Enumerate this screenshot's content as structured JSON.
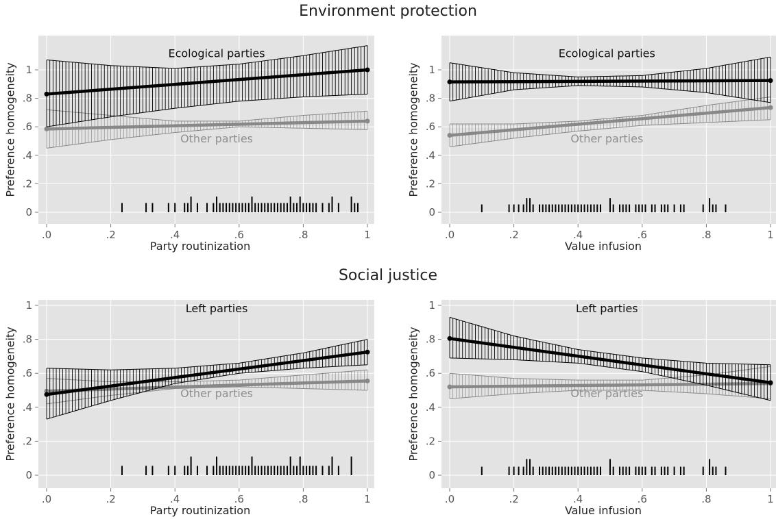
{
  "sections": [
    {
      "title": "Environment protection"
    },
    {
      "title": "Social justice"
    }
  ],
  "colors": {
    "panel_bg": "#e3e3e3",
    "grid": "#ffffff",
    "dark_series": "#000000",
    "light_series": "#888888",
    "light_label": "#8f8f8f"
  },
  "chart_data": [
    {
      "type": "line",
      "section": "Environment protection",
      "xlabel": "Party routinization",
      "ylabel": "Preference homogeneity",
      "xlim": [
        0,
        1
      ],
      "ylim": [
        0,
        1
      ],
      "xticks": [
        ".0",
        ".2",
        ".4",
        ".6",
        ".8",
        "1"
      ],
      "yticks": [
        "0",
        ".2",
        ".4",
        ".6",
        ".8",
        "1"
      ],
      "series": [
        {
          "name": "Ecological parties",
          "label_at": [
            0.53,
            1.09
          ],
          "style": "dark",
          "x_start": 0,
          "x_end": 1,
          "y_start": 0.83,
          "y_end": 1.0,
          "lower": [
            0.6,
            0.67,
            0.73,
            0.78,
            0.81,
            0.83
          ],
          "upper": [
            1.07,
            1.03,
            1.01,
            1.04,
            1.1,
            1.17
          ]
        },
        {
          "name": "Other parties",
          "label_at": [
            0.53,
            0.49
          ],
          "style": "light",
          "x_start": 0,
          "x_end": 1,
          "y_start": 0.585,
          "y_end": 0.64,
          "lower": [
            0.45,
            0.51,
            0.56,
            0.6,
            0.59,
            0.58
          ],
          "upper": [
            0.72,
            0.68,
            0.64,
            0.64,
            0.68,
            0.71
          ]
        }
      ],
      "rug": [
        {
          "x": 0.235,
          "h": 0.065
        },
        {
          "x": 0.31,
          "h": 0.065
        },
        {
          "x": 0.33,
          "h": 0.065
        },
        {
          "x": 0.38,
          "h": 0.065
        },
        {
          "x": 0.4,
          "h": 0.065
        },
        {
          "x": 0.43,
          "h": 0.065
        },
        {
          "x": 0.44,
          "h": 0.065
        },
        {
          "x": 0.45,
          "h": 0.11
        },
        {
          "x": 0.47,
          "h": 0.065
        },
        {
          "x": 0.5,
          "h": 0.065
        },
        {
          "x": 0.52,
          "h": 0.065
        },
        {
          "x": 0.53,
          "h": 0.11
        },
        {
          "x": 0.54,
          "h": 0.065
        },
        {
          "x": 0.55,
          "h": 0.065
        },
        {
          "x": 0.56,
          "h": 0.065
        },
        {
          "x": 0.57,
          "h": 0.065
        },
        {
          "x": 0.58,
          "h": 0.065
        },
        {
          "x": 0.59,
          "h": 0.065
        },
        {
          "x": 0.6,
          "h": 0.065
        },
        {
          "x": 0.61,
          "h": 0.065
        },
        {
          "x": 0.62,
          "h": 0.065
        },
        {
          "x": 0.63,
          "h": 0.065
        },
        {
          "x": 0.64,
          "h": 0.11
        },
        {
          "x": 0.65,
          "h": 0.065
        },
        {
          "x": 0.66,
          "h": 0.065
        },
        {
          "x": 0.67,
          "h": 0.065
        },
        {
          "x": 0.68,
          "h": 0.065
        },
        {
          "x": 0.69,
          "h": 0.065
        },
        {
          "x": 0.7,
          "h": 0.065
        },
        {
          "x": 0.71,
          "h": 0.065
        },
        {
          "x": 0.72,
          "h": 0.065
        },
        {
          "x": 0.73,
          "h": 0.065
        },
        {
          "x": 0.74,
          "h": 0.065
        },
        {
          "x": 0.75,
          "h": 0.065
        },
        {
          "x": 0.76,
          "h": 0.11
        },
        {
          "x": 0.77,
          "h": 0.065
        },
        {
          "x": 0.78,
          "h": 0.065
        },
        {
          "x": 0.79,
          "h": 0.11
        },
        {
          "x": 0.8,
          "h": 0.065
        },
        {
          "x": 0.81,
          "h": 0.065
        },
        {
          "x": 0.82,
          "h": 0.065
        },
        {
          "x": 0.83,
          "h": 0.065
        },
        {
          "x": 0.84,
          "h": 0.065
        },
        {
          "x": 0.86,
          "h": 0.065
        },
        {
          "x": 0.88,
          "h": 0.065
        },
        {
          "x": 0.89,
          "h": 0.11
        },
        {
          "x": 0.91,
          "h": 0.065
        },
        {
          "x": 0.95,
          "h": 0.11
        },
        {
          "x": 0.96,
          "h": 0.065
        },
        {
          "x": 0.97,
          "h": 0.065
        }
      ]
    },
    {
      "type": "line",
      "section": "Environment protection",
      "xlabel": "Value infusion",
      "ylabel": "Preference homogeneity",
      "xlim": [
        0,
        1
      ],
      "ylim": [
        0,
        1
      ],
      "xticks": [
        ".0",
        ".2",
        ".4",
        ".6",
        ".8",
        "1"
      ],
      "yticks": [
        "0",
        ".2",
        ".4",
        ".6",
        ".8",
        "1"
      ],
      "series": [
        {
          "name": "Ecological parties",
          "label_at": [
            0.49,
            1.09
          ],
          "style": "dark",
          "x_start": 0,
          "x_end": 1,
          "y_start": 0.915,
          "y_end": 0.925,
          "lower": [
            0.78,
            0.86,
            0.89,
            0.88,
            0.84,
            0.77
          ],
          "upper": [
            1.05,
            0.98,
            0.95,
            0.96,
            1.01,
            1.09
          ]
        },
        {
          "name": "Other parties",
          "label_at": [
            0.49,
            0.49
          ],
          "style": "light",
          "x_start": 0,
          "x_end": 1,
          "y_start": 0.54,
          "y_end": 0.735,
          "lower": [
            0.46,
            0.52,
            0.57,
            0.61,
            0.63,
            0.65
          ],
          "upper": [
            0.62,
            0.62,
            0.64,
            0.68,
            0.75,
            0.81
          ]
        }
      ],
      "rug": [
        {
          "x": 0.1,
          "h": 0.055
        },
        {
          "x": 0.185,
          "h": 0.055
        },
        {
          "x": 0.2,
          "h": 0.055
        },
        {
          "x": 0.215,
          "h": 0.055
        },
        {
          "x": 0.23,
          "h": 0.055
        },
        {
          "x": 0.24,
          "h": 0.1
        },
        {
          "x": 0.25,
          "h": 0.1
        },
        {
          "x": 0.26,
          "h": 0.055
        },
        {
          "x": 0.28,
          "h": 0.055
        },
        {
          "x": 0.29,
          "h": 0.055
        },
        {
          "x": 0.3,
          "h": 0.055
        },
        {
          "x": 0.31,
          "h": 0.055
        },
        {
          "x": 0.32,
          "h": 0.055
        },
        {
          "x": 0.33,
          "h": 0.055
        },
        {
          "x": 0.34,
          "h": 0.055
        },
        {
          "x": 0.35,
          "h": 0.055
        },
        {
          "x": 0.36,
          "h": 0.055
        },
        {
          "x": 0.37,
          "h": 0.055
        },
        {
          "x": 0.38,
          "h": 0.055
        },
        {
          "x": 0.39,
          "h": 0.055
        },
        {
          "x": 0.4,
          "h": 0.055
        },
        {
          "x": 0.41,
          "h": 0.055
        },
        {
          "x": 0.42,
          "h": 0.055
        },
        {
          "x": 0.43,
          "h": 0.055
        },
        {
          "x": 0.44,
          "h": 0.055
        },
        {
          "x": 0.45,
          "h": 0.055
        },
        {
          "x": 0.46,
          "h": 0.055
        },
        {
          "x": 0.47,
          "h": 0.055
        },
        {
          "x": 0.5,
          "h": 0.1
        },
        {
          "x": 0.51,
          "h": 0.055
        },
        {
          "x": 0.53,
          "h": 0.055
        },
        {
          "x": 0.54,
          "h": 0.055
        },
        {
          "x": 0.55,
          "h": 0.055
        },
        {
          "x": 0.56,
          "h": 0.055
        },
        {
          "x": 0.58,
          "h": 0.055
        },
        {
          "x": 0.59,
          "h": 0.055
        },
        {
          "x": 0.6,
          "h": 0.055
        },
        {
          "x": 0.61,
          "h": 0.055
        },
        {
          "x": 0.63,
          "h": 0.055
        },
        {
          "x": 0.64,
          "h": 0.055
        },
        {
          "x": 0.66,
          "h": 0.055
        },
        {
          "x": 0.67,
          "h": 0.055
        },
        {
          "x": 0.68,
          "h": 0.055
        },
        {
          "x": 0.7,
          "h": 0.055
        },
        {
          "x": 0.72,
          "h": 0.055
        },
        {
          "x": 0.73,
          "h": 0.055
        },
        {
          "x": 0.79,
          "h": 0.055
        },
        {
          "x": 0.81,
          "h": 0.1
        },
        {
          "x": 0.82,
          "h": 0.055
        },
        {
          "x": 0.83,
          "h": 0.055
        },
        {
          "x": 0.86,
          "h": 0.055
        }
      ]
    },
    {
      "type": "line",
      "section": "Social justice",
      "xlabel": "Party routinization",
      "ylabel": "Preference homogeneity",
      "xlim": [
        0,
        1
      ],
      "ylim": [
        0,
        1
      ],
      "xticks": [
        ".0",
        ".2",
        ".4",
        ".6",
        ".8",
        "1"
      ],
      "yticks": [
        "0",
        ".2",
        ".4",
        ".6",
        ".8",
        "1"
      ],
      "series": [
        {
          "name": "Left parties",
          "label_at": [
            0.53,
            0.96
          ],
          "style": "dark",
          "x_start": 0,
          "x_end": 1,
          "y_start": 0.475,
          "y_end": 0.725,
          "lower": [
            0.33,
            0.44,
            0.54,
            0.6,
            0.63,
            0.65
          ],
          "upper": [
            0.63,
            0.62,
            0.63,
            0.66,
            0.72,
            0.8
          ]
        },
        {
          "name": "Other parties",
          "label_at": [
            0.53,
            0.46
          ],
          "style": "light",
          "x_start": 0,
          "x_end": 1,
          "y_start": 0.495,
          "y_end": 0.555,
          "lower": [
            0.42,
            0.47,
            0.51,
            0.52,
            0.51,
            0.5
          ],
          "upper": [
            0.57,
            0.55,
            0.55,
            0.56,
            0.59,
            0.62
          ]
        }
      ],
      "rug": [
        {
          "x": 0.235,
          "h": 0.055
        },
        {
          "x": 0.31,
          "h": 0.055
        },
        {
          "x": 0.33,
          "h": 0.055
        },
        {
          "x": 0.38,
          "h": 0.055
        },
        {
          "x": 0.4,
          "h": 0.055
        },
        {
          "x": 0.43,
          "h": 0.055
        },
        {
          "x": 0.44,
          "h": 0.055
        },
        {
          "x": 0.45,
          "h": 0.11
        },
        {
          "x": 0.47,
          "h": 0.055
        },
        {
          "x": 0.5,
          "h": 0.055
        },
        {
          "x": 0.52,
          "h": 0.055
        },
        {
          "x": 0.53,
          "h": 0.11
        },
        {
          "x": 0.54,
          "h": 0.055
        },
        {
          "x": 0.55,
          "h": 0.055
        },
        {
          "x": 0.56,
          "h": 0.055
        },
        {
          "x": 0.57,
          "h": 0.055
        },
        {
          "x": 0.58,
          "h": 0.055
        },
        {
          "x": 0.59,
          "h": 0.055
        },
        {
          "x": 0.6,
          "h": 0.055
        },
        {
          "x": 0.61,
          "h": 0.055
        },
        {
          "x": 0.62,
          "h": 0.055
        },
        {
          "x": 0.63,
          "h": 0.055
        },
        {
          "x": 0.64,
          "h": 0.11
        },
        {
          "x": 0.65,
          "h": 0.055
        },
        {
          "x": 0.66,
          "h": 0.055
        },
        {
          "x": 0.67,
          "h": 0.055
        },
        {
          "x": 0.68,
          "h": 0.055
        },
        {
          "x": 0.69,
          "h": 0.055
        },
        {
          "x": 0.7,
          "h": 0.055
        },
        {
          "x": 0.71,
          "h": 0.055
        },
        {
          "x": 0.72,
          "h": 0.055
        },
        {
          "x": 0.73,
          "h": 0.055
        },
        {
          "x": 0.74,
          "h": 0.055
        },
        {
          "x": 0.75,
          "h": 0.055
        },
        {
          "x": 0.76,
          "h": 0.11
        },
        {
          "x": 0.77,
          "h": 0.055
        },
        {
          "x": 0.78,
          "h": 0.055
        },
        {
          "x": 0.79,
          "h": 0.11
        },
        {
          "x": 0.8,
          "h": 0.055
        },
        {
          "x": 0.81,
          "h": 0.055
        },
        {
          "x": 0.82,
          "h": 0.055
        },
        {
          "x": 0.83,
          "h": 0.055
        },
        {
          "x": 0.84,
          "h": 0.055
        },
        {
          "x": 0.86,
          "h": 0.055
        },
        {
          "x": 0.88,
          "h": 0.055
        },
        {
          "x": 0.89,
          "h": 0.11
        },
        {
          "x": 0.91,
          "h": 0.055
        },
        {
          "x": 0.95,
          "h": 0.11
        }
      ]
    },
    {
      "type": "line",
      "section": "Social justice",
      "xlabel": "Value infusion",
      "ylabel": "Preference homogeneity",
      "xlim": [
        0,
        1
      ],
      "ylim": [
        0,
        1
      ],
      "xticks": [
        ".0",
        ".2",
        ".4",
        ".6",
        ".8",
        "1"
      ],
      "yticks": [
        "0",
        ".2",
        ".4",
        ".6",
        ".8",
        "1"
      ],
      "series": [
        {
          "name": "Left parties",
          "label_at": [
            0.49,
            0.96
          ],
          "style": "dark",
          "x_start": 0,
          "x_end": 1,
          "y_start": 0.805,
          "y_end": 0.545,
          "lower": [
            0.69,
            0.68,
            0.66,
            0.61,
            0.53,
            0.44
          ],
          "upper": [
            0.93,
            0.82,
            0.74,
            0.69,
            0.66,
            0.65
          ]
        },
        {
          "name": "Other parties",
          "label_at": [
            0.49,
            0.46
          ],
          "style": "light",
          "x_start": 0,
          "x_end": 1,
          "y_start": 0.52,
          "y_end": 0.54,
          "lower": [
            0.45,
            0.48,
            0.5,
            0.5,
            0.48,
            0.45
          ],
          "upper": [
            0.6,
            0.57,
            0.56,
            0.56,
            0.59,
            0.64
          ]
        }
      ],
      "rug": [
        {
          "x": 0.1,
          "h": 0.05
        },
        {
          "x": 0.185,
          "h": 0.05
        },
        {
          "x": 0.2,
          "h": 0.05
        },
        {
          "x": 0.215,
          "h": 0.05
        },
        {
          "x": 0.23,
          "h": 0.05
        },
        {
          "x": 0.24,
          "h": 0.095
        },
        {
          "x": 0.25,
          "h": 0.095
        },
        {
          "x": 0.26,
          "h": 0.05
        },
        {
          "x": 0.28,
          "h": 0.05
        },
        {
          "x": 0.29,
          "h": 0.05
        },
        {
          "x": 0.3,
          "h": 0.05
        },
        {
          "x": 0.31,
          "h": 0.05
        },
        {
          "x": 0.32,
          "h": 0.05
        },
        {
          "x": 0.33,
          "h": 0.05
        },
        {
          "x": 0.34,
          "h": 0.05
        },
        {
          "x": 0.35,
          "h": 0.05
        },
        {
          "x": 0.36,
          "h": 0.05
        },
        {
          "x": 0.37,
          "h": 0.05
        },
        {
          "x": 0.38,
          "h": 0.05
        },
        {
          "x": 0.39,
          "h": 0.05
        },
        {
          "x": 0.4,
          "h": 0.05
        },
        {
          "x": 0.41,
          "h": 0.05
        },
        {
          "x": 0.42,
          "h": 0.05
        },
        {
          "x": 0.43,
          "h": 0.05
        },
        {
          "x": 0.44,
          "h": 0.05
        },
        {
          "x": 0.45,
          "h": 0.05
        },
        {
          "x": 0.46,
          "h": 0.05
        },
        {
          "x": 0.47,
          "h": 0.05
        },
        {
          "x": 0.5,
          "h": 0.095
        },
        {
          "x": 0.51,
          "h": 0.05
        },
        {
          "x": 0.53,
          "h": 0.05
        },
        {
          "x": 0.54,
          "h": 0.05
        },
        {
          "x": 0.55,
          "h": 0.05
        },
        {
          "x": 0.56,
          "h": 0.05
        },
        {
          "x": 0.58,
          "h": 0.05
        },
        {
          "x": 0.59,
          "h": 0.05
        },
        {
          "x": 0.6,
          "h": 0.05
        },
        {
          "x": 0.61,
          "h": 0.05
        },
        {
          "x": 0.63,
          "h": 0.05
        },
        {
          "x": 0.64,
          "h": 0.05
        },
        {
          "x": 0.66,
          "h": 0.05
        },
        {
          "x": 0.67,
          "h": 0.05
        },
        {
          "x": 0.68,
          "h": 0.05
        },
        {
          "x": 0.7,
          "h": 0.05
        },
        {
          "x": 0.72,
          "h": 0.05
        },
        {
          "x": 0.73,
          "h": 0.05
        },
        {
          "x": 0.79,
          "h": 0.05
        },
        {
          "x": 0.81,
          "h": 0.095
        },
        {
          "x": 0.82,
          "h": 0.05
        },
        {
          "x": 0.83,
          "h": 0.05
        },
        {
          "x": 0.86,
          "h": 0.05
        }
      ]
    }
  ]
}
